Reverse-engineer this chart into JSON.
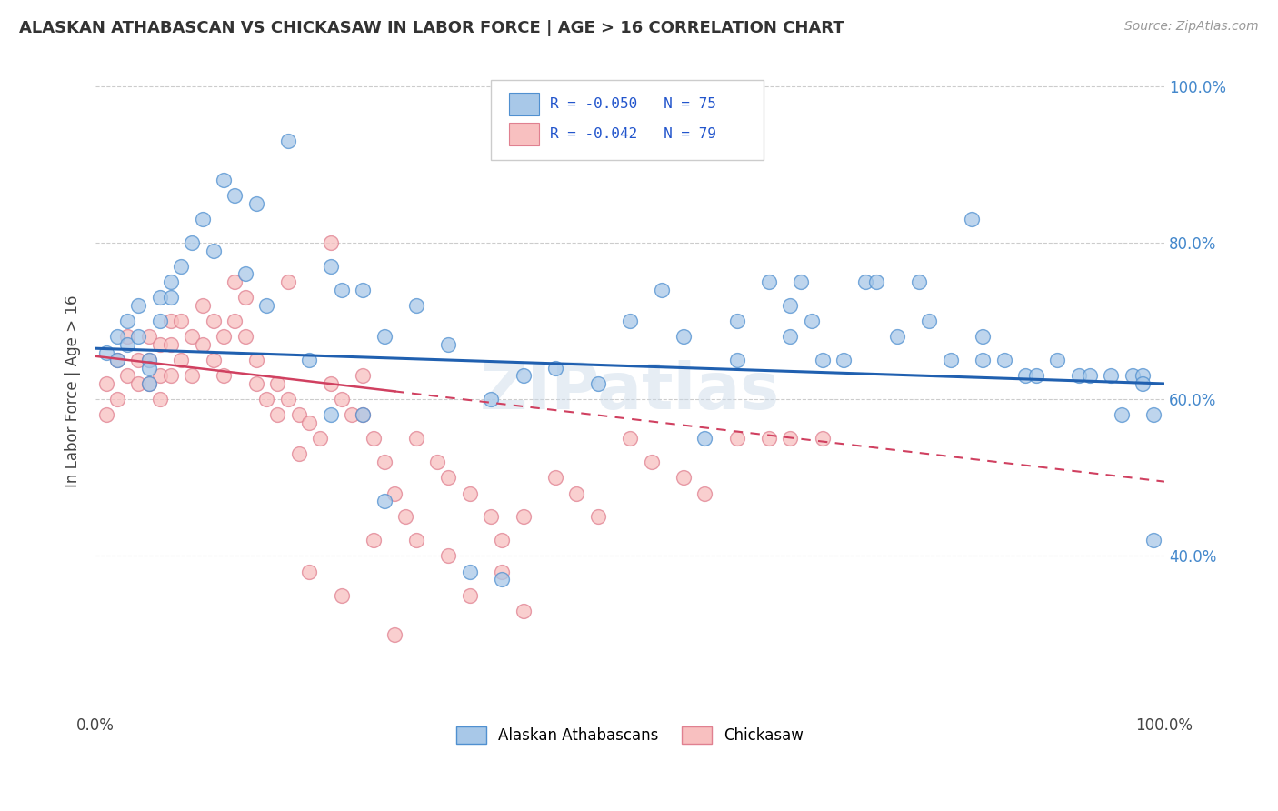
{
  "title": "ALASKAN ATHABASCAN VS CHICKASAW IN LABOR FORCE | AGE > 16 CORRELATION CHART",
  "source": "Source: ZipAtlas.com",
  "ylabel": "In Labor Force | Age > 16",
  "legend_label1": "Alaskan Athabascans",
  "legend_label2": "Chickasaw",
  "r1": -0.05,
  "n1": 75,
  "r2": -0.042,
  "n2": 79,
  "color_blue_fill": "#A8C8E8",
  "color_blue_edge": "#5090D0",
  "color_pink_fill": "#F8C0C0",
  "color_pink_edge": "#E08090",
  "color_blue_line": "#2060B0",
  "color_pink_line": "#D04060",
  "watermark": "ZIPatlas",
  "blue_x": [
    0.01,
    0.02,
    0.02,
    0.03,
    0.03,
    0.04,
    0.04,
    0.05,
    0.05,
    0.05,
    0.06,
    0.06,
    0.07,
    0.07,
    0.08,
    0.09,
    0.1,
    0.11,
    0.12,
    0.13,
    0.14,
    0.15,
    0.16,
    0.18,
    0.2,
    0.22,
    0.23,
    0.25,
    0.27,
    0.3,
    0.33,
    0.37,
    0.4,
    0.43,
    0.47,
    0.5,
    0.53,
    0.55,
    0.57,
    0.6,
    0.6,
    0.63,
    0.65,
    0.65,
    0.66,
    0.67,
    0.68,
    0.7,
    0.72,
    0.73,
    0.75,
    0.77,
    0.78,
    0.8,
    0.82,
    0.83,
    0.83,
    0.85,
    0.87,
    0.88,
    0.9,
    0.92,
    0.93,
    0.95,
    0.96,
    0.97,
    0.98,
    0.98,
    0.99,
    0.99,
    0.22,
    0.25,
    0.27,
    0.35,
    0.38
  ],
  "blue_y": [
    0.66,
    0.68,
    0.65,
    0.7,
    0.67,
    0.68,
    0.72,
    0.65,
    0.64,
    0.62,
    0.73,
    0.7,
    0.75,
    0.73,
    0.77,
    0.8,
    0.83,
    0.79,
    0.88,
    0.86,
    0.76,
    0.85,
    0.72,
    0.93,
    0.65,
    0.77,
    0.74,
    0.74,
    0.68,
    0.72,
    0.67,
    0.6,
    0.63,
    0.64,
    0.62,
    0.7,
    0.74,
    0.68,
    0.55,
    0.65,
    0.7,
    0.75,
    0.72,
    0.68,
    0.75,
    0.7,
    0.65,
    0.65,
    0.75,
    0.75,
    0.68,
    0.75,
    0.7,
    0.65,
    0.83,
    0.68,
    0.65,
    0.65,
    0.63,
    0.63,
    0.65,
    0.63,
    0.63,
    0.63,
    0.58,
    0.63,
    0.63,
    0.62,
    0.58,
    0.42,
    0.58,
    0.58,
    0.47,
    0.38,
    0.37
  ],
  "pink_x": [
    0.01,
    0.01,
    0.02,
    0.02,
    0.03,
    0.03,
    0.04,
    0.04,
    0.05,
    0.05,
    0.05,
    0.06,
    0.06,
    0.06,
    0.07,
    0.07,
    0.07,
    0.08,
    0.08,
    0.09,
    0.09,
    0.1,
    0.1,
    0.11,
    0.11,
    0.12,
    0.12,
    0.13,
    0.13,
    0.14,
    0.14,
    0.15,
    0.15,
    0.16,
    0.17,
    0.17,
    0.18,
    0.18,
    0.19,
    0.19,
    0.2,
    0.21,
    0.22,
    0.22,
    0.23,
    0.24,
    0.25,
    0.25,
    0.26,
    0.27,
    0.28,
    0.29,
    0.3,
    0.32,
    0.33,
    0.35,
    0.37,
    0.38,
    0.4,
    0.43,
    0.45,
    0.47,
    0.5,
    0.52,
    0.55,
    0.57,
    0.6,
    0.63,
    0.65,
    0.68,
    0.2,
    0.23,
    0.26,
    0.28,
    0.3,
    0.33,
    0.35,
    0.38,
    0.4
  ],
  "pink_y": [
    0.62,
    0.58,
    0.65,
    0.6,
    0.68,
    0.63,
    0.65,
    0.62,
    0.68,
    0.65,
    0.62,
    0.67,
    0.63,
    0.6,
    0.7,
    0.67,
    0.63,
    0.7,
    0.65,
    0.68,
    0.63,
    0.72,
    0.67,
    0.7,
    0.65,
    0.68,
    0.63,
    0.75,
    0.7,
    0.73,
    0.68,
    0.65,
    0.62,
    0.6,
    0.62,
    0.58,
    0.75,
    0.6,
    0.58,
    0.53,
    0.57,
    0.55,
    0.8,
    0.62,
    0.6,
    0.58,
    0.63,
    0.58,
    0.55,
    0.52,
    0.48,
    0.45,
    0.55,
    0.52,
    0.5,
    0.48,
    0.45,
    0.42,
    0.45,
    0.5,
    0.48,
    0.45,
    0.55,
    0.52,
    0.5,
    0.48,
    0.55,
    0.55,
    0.55,
    0.55,
    0.38,
    0.35,
    0.42,
    0.3,
    0.42,
    0.4,
    0.35,
    0.38,
    0.33
  ]
}
